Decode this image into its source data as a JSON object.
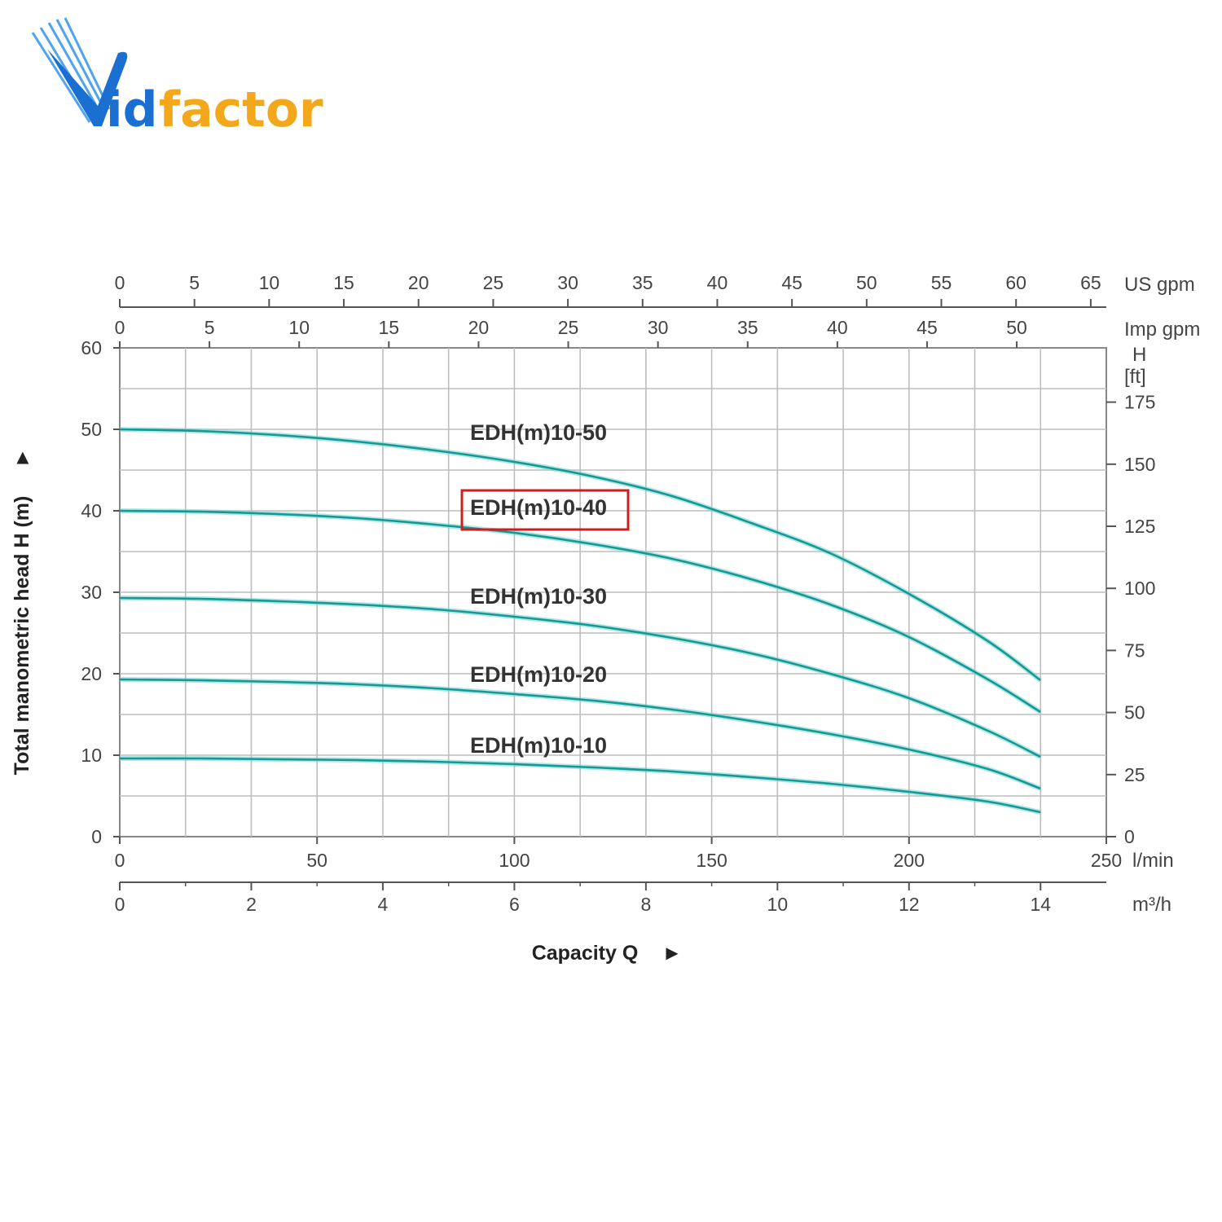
{
  "logo": {
    "text_blue": "id",
    "text_orange": "factor",
    "alt": "Vidfactor"
  },
  "colors": {
    "curve": "#149a95",
    "curve_glow": "#7fd3d0",
    "grid": "#bdbdbd",
    "highlight": "#cc1f1f",
    "logo_blue": "#1a6fd1",
    "logo_orange": "#f3a71a"
  },
  "chart_data": {
    "type": "line",
    "title": "",
    "xlabel": "Capacity Q",
    "xlabel_arrow": "►",
    "ylabel": "Total manometric head H (m)",
    "ylabel_arrow": "►",
    "xlim": [
      0,
      250
    ],
    "ylim": [
      0,
      60
    ],
    "grid": true,
    "x_ticks": [
      "0",
      "50",
      "100",
      "150",
      "200",
      "250"
    ],
    "x_unit": "l/min",
    "y_ticks": [
      "0",
      "10",
      "20",
      "30",
      "40",
      "50",
      "60"
    ],
    "m3h_ticks": [
      "0",
      "2",
      "4",
      "6",
      "8",
      "10",
      "12",
      "14"
    ],
    "m3h_unit": "m³/h",
    "us_gpm_ticks": [
      "0",
      "5",
      "10",
      "15",
      "20",
      "25",
      "30",
      "35",
      "40",
      "45",
      "50",
      "55",
      "60",
      "65"
    ],
    "us_gpm_unit": "US gpm",
    "imp_gpm_ticks": [
      "0",
      "5",
      "10",
      "15",
      "20",
      "25",
      "30",
      "35",
      "40",
      "45",
      "50"
    ],
    "imp_gpm_unit": "Imp gpm",
    "ft_label_h": "H",
    "ft_label_unit": "[ft]",
    "ft_ticks": [
      "0",
      "25",
      "50",
      "75",
      "100",
      "125",
      "150",
      "175"
    ],
    "highlighted_series": "EDH(m)10-40",
    "series": [
      {
        "name": "EDH(m)10-50",
        "x": [
          0,
          20,
          40,
          60,
          80,
          100,
          120,
          140,
          160,
          180,
          200,
          220,
          233.3
        ],
        "values": [
          50,
          49.8,
          49.3,
          48.5,
          47.4,
          46.0,
          44.2,
          41.8,
          38.5,
          34.8,
          29.8,
          24.0,
          19.2
        ]
      },
      {
        "name": "EDH(m)10-40",
        "x": [
          0,
          20,
          40,
          60,
          80,
          100,
          120,
          140,
          160,
          180,
          200,
          220,
          233.3
        ],
        "values": [
          40,
          39.9,
          39.6,
          39.1,
          38.3,
          37.3,
          35.9,
          34.1,
          31.6,
          28.5,
          24.5,
          19.3,
          15.3
        ]
      },
      {
        "name": "EDH(m)10-30",
        "x": [
          0,
          20,
          40,
          60,
          80,
          100,
          120,
          140,
          160,
          180,
          200,
          220,
          233.3
        ],
        "values": [
          29.3,
          29.2,
          28.9,
          28.5,
          27.9,
          27.0,
          25.9,
          24.4,
          22.5,
          20.0,
          17.0,
          13.0,
          9.8
        ]
      },
      {
        "name": "EDH(m)10-20",
        "x": [
          0,
          20,
          40,
          60,
          80,
          100,
          120,
          140,
          160,
          180,
          200,
          220,
          233.3
        ],
        "values": [
          19.3,
          19.2,
          19.0,
          18.7,
          18.2,
          17.5,
          16.7,
          15.6,
          14.2,
          12.6,
          10.7,
          8.3,
          5.9
        ]
      },
      {
        "name": "EDH(m)10-10",
        "x": [
          0,
          20,
          40,
          60,
          80,
          100,
          120,
          140,
          160,
          180,
          200,
          220,
          233.3
        ],
        "values": [
          9.6,
          9.6,
          9.5,
          9.4,
          9.2,
          8.9,
          8.5,
          8.0,
          7.3,
          6.5,
          5.5,
          4.3,
          3.0
        ]
      }
    ]
  }
}
